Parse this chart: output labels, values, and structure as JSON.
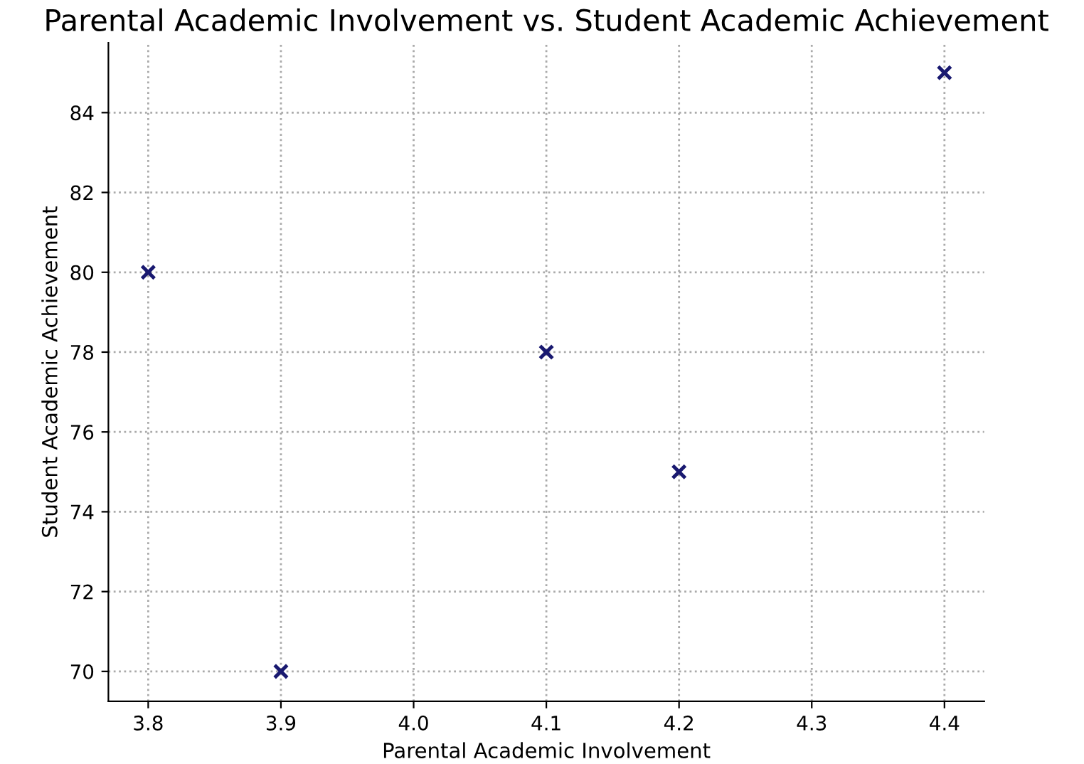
{
  "chart_data": {
    "type": "scatter",
    "title": "Parental Academic Involvement vs. Student Academic Achievement",
    "xlabel": "Parental Academic Involvement",
    "ylabel": "Student Academic Achievement",
    "x": [
      3.8,
      3.9,
      4.1,
      4.2,
      4.4
    ],
    "series": [
      {
        "color": "#191970",
        "values": [
          80,
          70,
          78,
          75,
          85
        ]
      }
    ],
    "marker": "cross",
    "grid": true,
    "legend": false,
    "xlim": [
      3.77,
      4.43
    ],
    "xticks": [
      {
        "value": 3.8,
        "label": "3.8"
      },
      {
        "value": 3.9,
        "label": "3.9"
      },
      {
        "value": 4.0,
        "label": "4.0"
      },
      {
        "value": 4.1,
        "label": "4.1"
      },
      {
        "value": 4.2,
        "label": "4.2"
      },
      {
        "value": 4.3,
        "label": "4.3"
      },
      {
        "value": 4.4,
        "label": "4.4"
      }
    ],
    "ylim": [
      69.25,
      85.75
    ],
    "yticks": [
      70,
      72,
      74,
      76,
      78,
      80,
      82,
      84
    ]
  }
}
